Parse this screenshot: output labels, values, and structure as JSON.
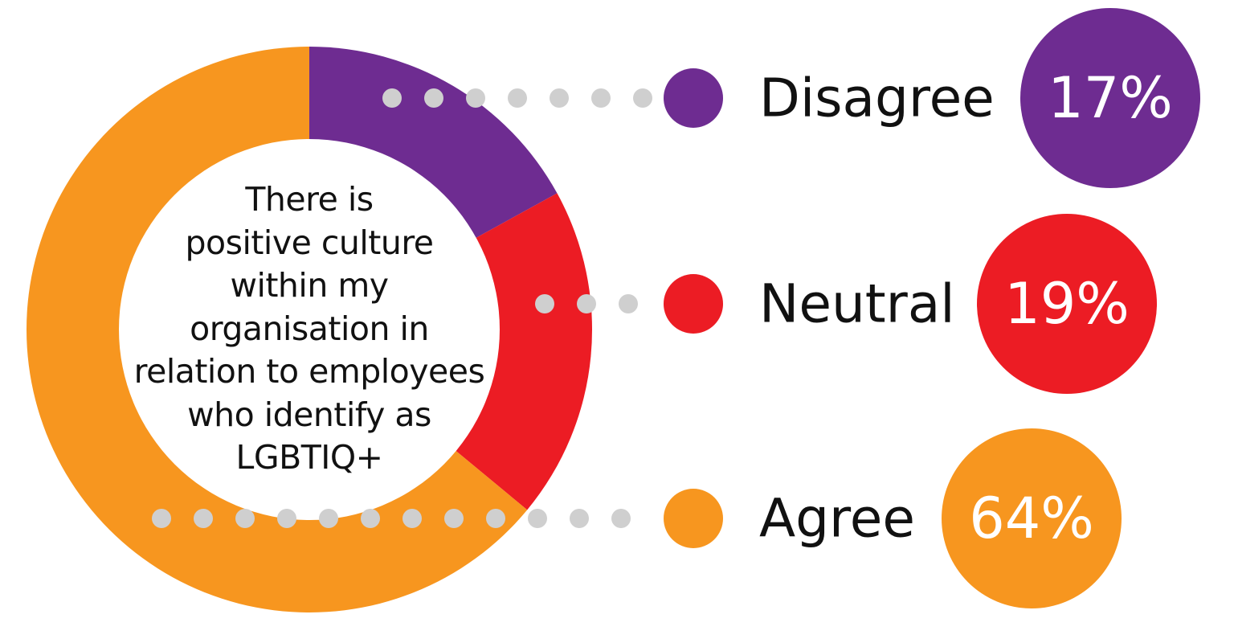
{
  "chart_data": {
    "type": "pie",
    "variant": "donut",
    "center_text_lines": [
      "There is",
      "positive culture",
      "within my",
      "organisation in",
      "relation to employees",
      "who identify as",
      "LGBTIQ+"
    ],
    "slices": [
      {
        "label": "Disagree",
        "value": 17,
        "display": "17%",
        "color": "#6e2c91"
      },
      {
        "label": "Neutral",
        "value": 19,
        "display": "19%",
        "color": "#ec1c24"
      },
      {
        "label": "Agree",
        "value": 64,
        "display": "64%",
        "color": "#f7961f"
      }
    ],
    "connector_color": "#cfcfcf",
    "legend_placement": "right"
  }
}
